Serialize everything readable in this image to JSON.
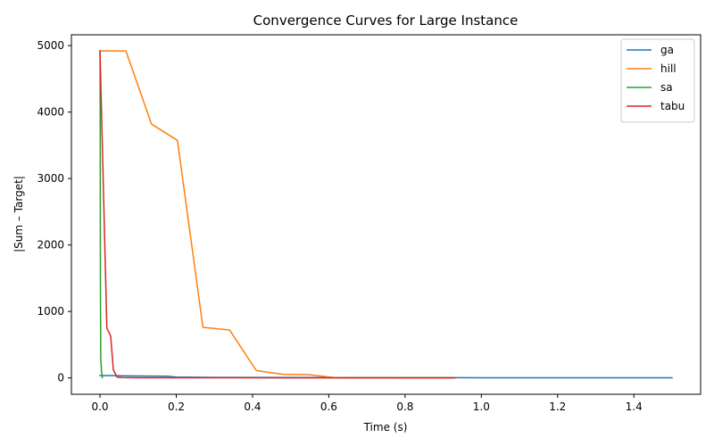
{
  "chart_data": {
    "type": "line",
    "title": "Convergence Curves for Large Instance",
    "xlabel": "Time (s)",
    "ylabel": "|Sum – Target|",
    "xlim": [
      -0.075,
      1.575
    ],
    "ylim": [
      -246,
      5163
    ],
    "xticks": [
      0.0,
      0.2,
      0.4,
      0.6,
      0.8,
      1.0,
      1.2,
      1.4
    ],
    "xtick_labels": [
      "0.0",
      "0.2",
      "0.4",
      "0.6",
      "0.8",
      "1.0",
      "1.2",
      "1.4"
    ],
    "yticks": [
      0,
      1000,
      2000,
      3000,
      4000,
      5000
    ],
    "ytick_labels": [
      "0",
      "1000",
      "2000",
      "3000",
      "4000",
      "5000"
    ],
    "grid": false,
    "legend": "top-right",
    "series": [
      {
        "name": "ga",
        "color": "#1f77b4",
        "x": [
          0.0,
          0.05,
          0.1,
          0.18,
          0.2,
          0.3,
          0.6,
          1.0,
          1.5
        ],
        "y": [
          35,
          33,
          30,
          25,
          12,
          8,
          5,
          3,
          2
        ]
      },
      {
        "name": "hill",
        "color": "#ff7f0e",
        "x": [
          0.0,
          0.068,
          0.135,
          0.203,
          0.27,
          0.34,
          0.41,
          0.48,
          0.545,
          0.615,
          0.65,
          0.93
        ],
        "y": [
          4920,
          4920,
          3820,
          3575,
          760,
          720,
          110,
          55,
          50,
          5,
          2,
          1
        ]
      },
      {
        "name": "sa",
        "color": "#2ca02c",
        "x": [
          0.0,
          0.0005,
          0.001,
          0.002,
          0.003,
          0.004,
          0.006
        ],
        "y": [
          4920,
          4000,
          1500,
          250,
          200,
          100,
          5
        ]
      },
      {
        "name": "tabu",
        "color": "#d62728",
        "x": [
          0.0,
          0.018,
          0.028,
          0.035,
          0.045,
          0.06,
          0.1,
          0.3,
          0.93
        ],
        "y": [
          4920,
          750,
          630,
          120,
          10,
          5,
          3,
          2,
          0
        ]
      }
    ]
  }
}
